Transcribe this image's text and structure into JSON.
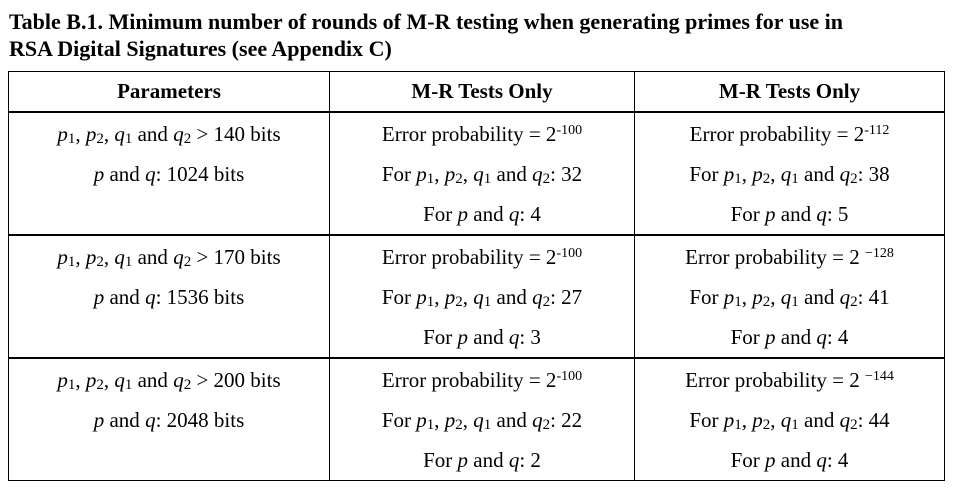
{
  "caption": {
    "line1": "Table B.1.  Minimum number of rounds of M-R testing when generating primes for use in",
    "line2": "RSA Digital Signatures (see Appendix C)"
  },
  "headers": {
    "parameters": "Parameters",
    "col2": "M-R Tests Only",
    "col3": "M-R Tests Only"
  },
  "rows": [
    {
      "aux_bits": "> 140 bits",
      "pq_bits": ": 1024 bits",
      "col2": {
        "error_label": "Error probability = 2",
        "error_exp": "-100",
        "aux_rounds": ": 32",
        "pq_rounds": ": 4"
      },
      "col3": {
        "error_label": "Error probability = 2",
        "error_exp": "-112",
        "aux_rounds": ": 38",
        "pq_rounds": ": 5"
      }
    },
    {
      "aux_bits": "> 170 bits",
      "pq_bits": ": 1536 bits",
      "col2": {
        "error_label": "Error probability = 2",
        "error_exp": "-100",
        "aux_rounds": ": 27",
        "pq_rounds": ": 3"
      },
      "col3": {
        "error_label": "Error probability = 2 ",
        "error_exp": "−128",
        "aux_rounds": ": 41",
        "pq_rounds": ": 4"
      }
    },
    {
      "aux_bits": "> 200 bits",
      "pq_bits": ": 2048 bits",
      "col2": {
        "error_label": "Error probability = 2",
        "error_exp": "-100",
        "aux_rounds": ": 22",
        "pq_rounds": ": 2"
      },
      "col3": {
        "error_label": "Error probability = 2 ",
        "error_exp": "−144",
        "aux_rounds": ": 44",
        "pq_rounds": ": 4"
      }
    }
  ],
  "symbols": {
    "p": "p",
    "q": "q",
    "one": "1",
    "two": "2",
    "comma": ", ",
    "and": " and ",
    "for": "For "
  }
}
